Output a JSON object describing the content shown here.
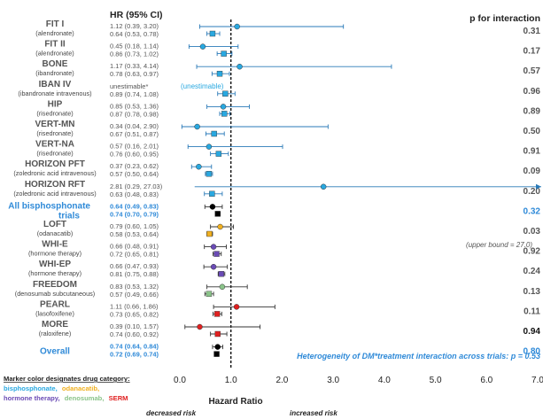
{
  "header": {
    "hr_title": "HR (95% CI)",
    "p_title": "p for interaction"
  },
  "colors": {
    "bisphosphonate": "#29a8e0",
    "bisphosphonate_dark": "#3a7bc8",
    "odanacatib": "#f0b020",
    "hormone_therapy": "#6a4bb5",
    "denosumab": "#8bc48a",
    "serm": "#e02020",
    "ci_line_blue": "#2a7ab8",
    "ci_line_dark": "#333333",
    "highlight_text": "#2f8ad8",
    "label_text": "#555555"
  },
  "legend": {
    "title": "Marker color designates drug category:",
    "items": [
      {
        "label": "bisphosphonate,",
        "color": "#29a8e0"
      },
      {
        "label": "odanacatib,",
        "color": "#f0b020"
      },
      {
        "label": "hormone therapy,",
        "color": "#6a4bb5"
      },
      {
        "label": "denosumab,",
        "color": "#8bc48a"
      },
      {
        "label": "SERM",
        "color": "#e02020"
      }
    ]
  },
  "annotations": {
    "upper_bound": "(upper bound = 27.0)",
    "unestimable": "(unestimable)",
    "heterogeneity": "Heterogeneity of DM*treatment interaction across trials: p = 0.53",
    "decreased": "decreased risk",
    "increased": "increased risk"
  },
  "chart_data": {
    "type": "forest",
    "xlabel": "Hazard Ratio",
    "xlim": [
      0,
      7
    ],
    "x_ticks": [
      "0.0",
      "1.0",
      "2.0",
      "3.0",
      "4.0",
      "5.0",
      "6.0",
      "7.0"
    ],
    "x_tick_values": [
      0,
      1,
      2,
      3,
      4,
      5,
      6,
      7
    ],
    "reference_line": 1.0,
    "studies": [
      {
        "name": "FIT I",
        "sub": "(alendronate)",
        "category": "bisphosphonate",
        "p": "0.31",
        "dm": {
          "text": "1.12 (0.39, 3.20)",
          "hr": 1.12,
          "lo": 0.39,
          "hi": 3.2
        },
        "nodm": {
          "text": "0.64 (0.53, 0.78)",
          "hr": 0.64,
          "lo": 0.53,
          "hi": 0.78
        }
      },
      {
        "name": "FIT II",
        "sub": "(alendronate)",
        "category": "bisphosphonate",
        "p": "0.17",
        "dm": {
          "text": "0.45 (0.18, 1.14)",
          "hr": 0.45,
          "lo": 0.18,
          "hi": 1.14
        },
        "nodm": {
          "text": "0.86 (0.73, 1.02)",
          "hr": 0.86,
          "lo": 0.73,
          "hi": 1.02
        }
      },
      {
        "name": "BONE",
        "sub": "(ibandronate)",
        "category": "bisphosphonate",
        "p": "0.57",
        "dm": {
          "text": "1.17 (0.33, 4.14)",
          "hr": 1.17,
          "lo": 0.33,
          "hi": 4.14
        },
        "nodm": {
          "text": "0.78 (0.63, 0.97)",
          "hr": 0.78,
          "lo": 0.63,
          "hi": 0.97
        }
      },
      {
        "name": "IBAN IV",
        "sub": "(ibandronate intravenous)",
        "category": "bisphosphonate",
        "p": "0.96",
        "dm": {
          "text": "unestimable*",
          "hr": null,
          "lo": null,
          "hi": null
        },
        "nodm": {
          "text": "0.89 (0.74, 1.08)",
          "hr": 0.89,
          "lo": 0.74,
          "hi": 1.08
        }
      },
      {
        "name": "HIP",
        "sub": "(risedronate)",
        "category": "bisphosphonate",
        "p": "0.89",
        "dm": {
          "text": "0.85 (0.53, 1.36)",
          "hr": 0.85,
          "lo": 0.53,
          "hi": 1.36
        },
        "nodm": {
          "text": "0.87 (0.78, 0.98)",
          "hr": 0.87,
          "lo": 0.78,
          "hi": 0.98
        }
      },
      {
        "name": "VERT-MN",
        "sub": "(risedronate)",
        "category": "bisphosphonate",
        "p": "0.50",
        "dm": {
          "text": "0.34 (0.04, 2.90)",
          "hr": 0.34,
          "lo": 0.04,
          "hi": 2.9
        },
        "nodm": {
          "text": "0.67 (0.51, 0.87)",
          "hr": 0.67,
          "lo": 0.51,
          "hi": 0.87
        }
      },
      {
        "name": "VERT-NA",
        "sub": "(risedronate)",
        "category": "bisphosphonate",
        "p": "0.91",
        "dm": {
          "text": "0.57 (0.16, 2.01)",
          "hr": 0.57,
          "lo": 0.16,
          "hi": 2.01
        },
        "nodm": {
          "text": "0.76 (0.60, 0.95)",
          "hr": 0.76,
          "lo": 0.6,
          "hi": 0.95
        }
      },
      {
        "name": "HORIZON PFT",
        "sub": "(zoledronic acid intravenous)",
        "category": "bisphosphonate",
        "p": "0.09",
        "dm": {
          "text": "0.37 (0.23, 0.62)",
          "hr": 0.37,
          "lo": 0.23,
          "hi": 0.62
        },
        "nodm": {
          "text": "0.57 (0.50, 0.64)",
          "hr": 0.57,
          "lo": 0.5,
          "hi": 0.64
        }
      },
      {
        "name": "HORIZON RFT",
        "sub": "(zoledronic acid intravenous)",
        "category": "bisphosphonate",
        "p": "0.20",
        "dm": {
          "text": "2.81 (0.29, 27.03)",
          "hr": 2.81,
          "lo": 0.29,
          "hi": 27.03
        },
        "nodm": {
          "text": "0.63 (0.48, 0.83)",
          "hr": 0.63,
          "lo": 0.48,
          "hi": 0.83
        }
      },
      {
        "name": "All bisphosphonate trials",
        "sub": "",
        "category": "pooled",
        "p": "0.32",
        "dm": {
          "text": "0.64 (0.49, 0.83)",
          "hr": 0.64,
          "lo": 0.49,
          "hi": 0.83
        },
        "nodm": {
          "text": "0.74 (0.70, 0.79)",
          "hr": 0.74,
          "lo": 0.7,
          "hi": 0.79
        }
      },
      {
        "name": "LOFT",
        "sub": "(odanacatib)",
        "category": "odanacatib",
        "p": "0.03",
        "dm": {
          "text": "0.79 (0.60, 1.05)",
          "hr": 0.79,
          "lo": 0.6,
          "hi": 1.05
        },
        "nodm": {
          "text": "0.58 (0.53, 0.64)",
          "hr": 0.58,
          "lo": 0.53,
          "hi": 0.64
        }
      },
      {
        "name": "WHI-E",
        "sub": "(hormone therapy)",
        "category": "hormone_therapy",
        "p": "0.92",
        "dm": {
          "text": "0.66 (0.48, 0.91)",
          "hr": 0.66,
          "lo": 0.48,
          "hi": 0.91
        },
        "nodm": {
          "text": "0.72 (0.65, 0.81)",
          "hr": 0.72,
          "lo": 0.65,
          "hi": 0.81
        }
      },
      {
        "name": "WHI-EP",
        "sub": "(hormone therapy)",
        "category": "hormone_therapy",
        "p": "0.24",
        "dm": {
          "text": "0.66 (0.47, 0.93)",
          "hr": 0.66,
          "lo": 0.47,
          "hi": 0.93
        },
        "nodm": {
          "text": "0.81 (0.75, 0.88)",
          "hr": 0.81,
          "lo": 0.75,
          "hi": 0.88
        }
      },
      {
        "name": "FREEDOM",
        "sub": "(denosumab subcutaneous)",
        "category": "denosumab",
        "p": "0.13",
        "dm": {
          "text": "0.83 (0.53, 1.32)",
          "hr": 0.83,
          "lo": 0.53,
          "hi": 1.32
        },
        "nodm": {
          "text": "0.57 (0.49, 0.66)",
          "hr": 0.57,
          "lo": 0.49,
          "hi": 0.66
        }
      },
      {
        "name": "PEARL",
        "sub": "(lasofoxifene)",
        "category": "serm",
        "p": "0.11",
        "dm": {
          "text": "1.11 (0.66, 1.86)",
          "hr": 1.11,
          "lo": 0.66,
          "hi": 1.86
        },
        "nodm": {
          "text": "0.73 (0.65, 0.82)",
          "hr": 0.73,
          "lo": 0.65,
          "hi": 0.82
        }
      },
      {
        "name": "MORE",
        "sub": "(raloxifene)",
        "category": "serm",
        "p": "0.94",
        "dm": {
          "text": "0.39 (0.10, 1.57)",
          "hr": 0.39,
          "lo": 0.1,
          "hi": 1.57
        },
        "nodm": {
          "text": "0.74 (0.60, 0.92)",
          "hr": 0.74,
          "lo": 0.6,
          "hi": 0.92
        }
      },
      {
        "name": "Overall",
        "sub": "",
        "category": "pooled",
        "p": "0.80",
        "dm": {
          "text": "0.74 (0.64, 0.84)",
          "hr": 0.74,
          "lo": 0.64,
          "hi": 0.84
        },
        "nodm": {
          "text": "0.72 (0.69, 0.74)",
          "hr": 0.72,
          "lo": 0.69,
          "hi": 0.74
        }
      }
    ]
  }
}
